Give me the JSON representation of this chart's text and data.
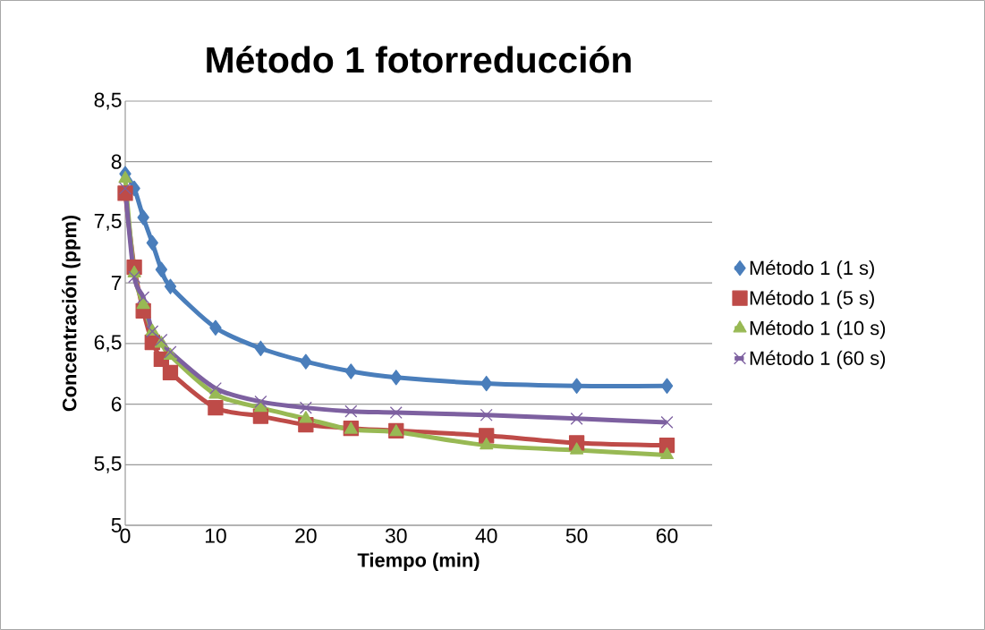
{
  "chart_data": {
    "type": "line",
    "title": "Método 1 fotorreducción",
    "xlabel": "Tiempo (min)",
    "ylabel": "Concentración (ppm)",
    "x": [
      0,
      1,
      2,
      3,
      4,
      5,
      10,
      15,
      20,
      25,
      30,
      40,
      50,
      60
    ],
    "series": [
      {
        "name": "Método 1 (1 s)",
        "color": "#4a7ebb",
        "marker": "diamond",
        "values": [
          7.9,
          7.78,
          7.54,
          7.33,
          7.11,
          6.97,
          6.63,
          6.46,
          6.35,
          6.27,
          6.22,
          6.17,
          6.15,
          6.15
        ]
      },
      {
        "name": "Método 1 (5 s)",
        "color": "#be4b48",
        "marker": "square",
        "values": [
          7.74,
          7.13,
          6.77,
          6.51,
          6.37,
          6.26,
          5.97,
          5.9,
          5.83,
          5.8,
          5.78,
          5.74,
          5.68,
          5.66
        ]
      },
      {
        "name": "Método 1 (10 s)",
        "color": "#98b954",
        "marker": "triangle",
        "values": [
          7.86,
          7.08,
          6.82,
          6.6,
          6.5,
          6.4,
          6.08,
          5.97,
          5.88,
          5.79,
          5.77,
          5.66,
          5.62,
          5.58
        ]
      },
      {
        "name": "Método 1 (60 s)",
        "color": "#7d60a0",
        "marker": "cross",
        "values": [
          7.78,
          7.05,
          6.88,
          6.6,
          6.53,
          6.43,
          6.13,
          6.02,
          5.97,
          5.94,
          5.93,
          5.91,
          5.88,
          5.85
        ]
      }
    ],
    "xlim": [
      0,
      65
    ],
    "xticks": [
      0,
      10,
      20,
      30,
      40,
      50,
      60
    ],
    "ylim": [
      5,
      8.5
    ],
    "yticks": [
      5,
      {
        "value": 5.5,
        "label": "5,5"
      },
      6,
      {
        "value": 6.5,
        "label": "6,5"
      },
      7,
      {
        "value": 7.5,
        "label": "7,5"
      },
      8,
      {
        "value": 8.5,
        "label": "8,5"
      }
    ],
    "grid": "y",
    "legend": "right",
    "line_style": "solid"
  }
}
